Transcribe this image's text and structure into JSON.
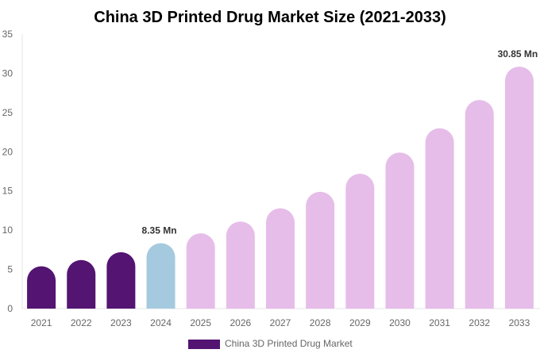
{
  "chart_data": {
    "type": "bar",
    "title": "China 3D Printed Drug Market Size (2021-2033)",
    "xlabel": "",
    "ylabel": "",
    "ylim": [
      0,
      35
    ],
    "yticks": [
      "0",
      "5",
      "10",
      "15",
      "20",
      "25",
      "30",
      "35"
    ],
    "categories": [
      "2021",
      "2022",
      "2023",
      "2024",
      "2025",
      "2026",
      "2027",
      "2028",
      "2029",
      "2030",
      "2031",
      "2032",
      "2033"
    ],
    "series": [
      {
        "name": "China 3D Printed Drug Market",
        "values": [
          5.4,
          6.2,
          7.2,
          8.35,
          9.6,
          11.1,
          12.8,
          14.9,
          17.2,
          19.9,
          23.0,
          26.6,
          30.85
        ]
      }
    ],
    "bar_colors": {
      "historical": "#541472",
      "base_year": "#a5cadf",
      "forecast": "#e6bde9"
    },
    "period_index": {
      "base_year": 3
    },
    "data_labels": [
      {
        "category": "2024",
        "text": "8.35 Mn"
      },
      {
        "category": "2033",
        "text": "30.85 Mn"
      }
    ],
    "grid": false,
    "legend": {
      "position": "bottom",
      "label": "China 3D Printed Drug Market",
      "color": "#541472"
    }
  }
}
